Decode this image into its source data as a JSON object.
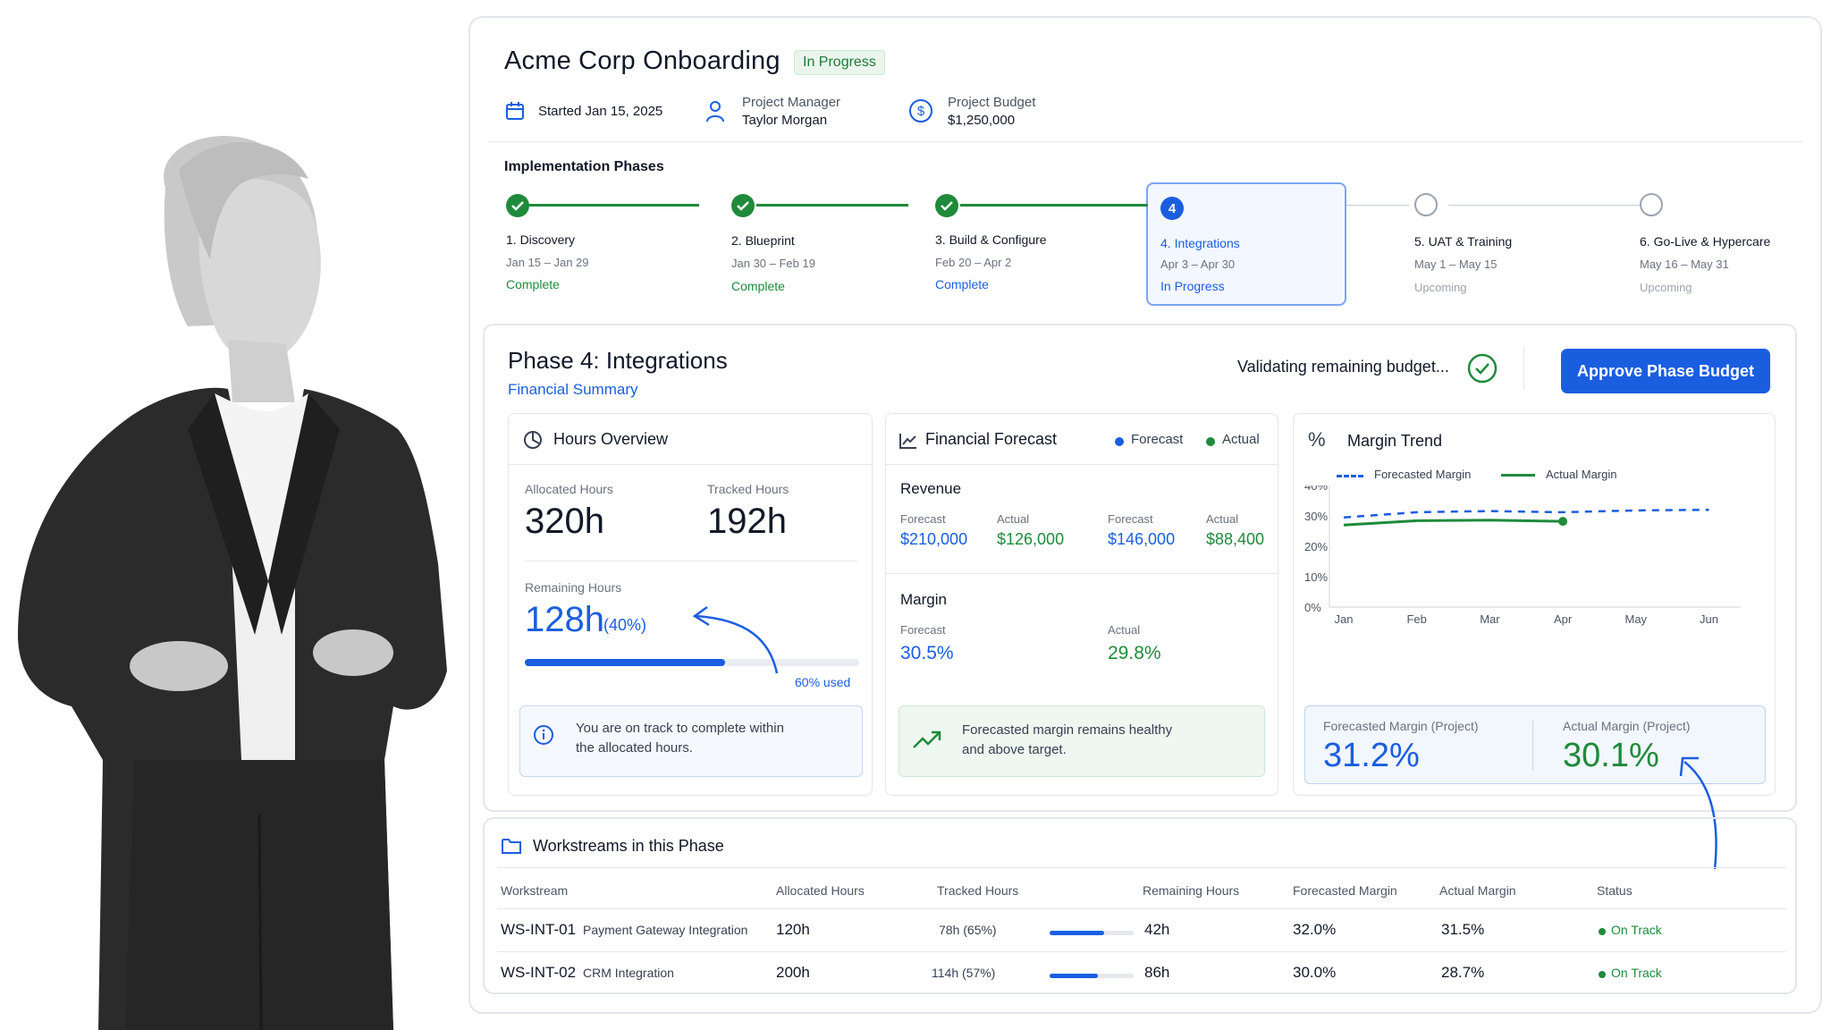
{
  "project": {
    "title": "Acme Corp Onboarding",
    "status_badge": "In Progress",
    "started": "Started Jan 15, 2025",
    "manager_label": "Project Manager",
    "manager_name": "Taylor Morgan",
    "budget_label": "Project Budget",
    "budget_value": "$1,250,000"
  },
  "phases": {
    "label": "Implementation Phases",
    "items": [
      {
        "name": "1. Discovery",
        "dates": "Jan 15 – Jan 29",
        "status": "Complete"
      },
      {
        "name": "2. Blueprint",
        "dates": "Jan 30 – Feb 19",
        "status": "Complete"
      },
      {
        "name": "3. Build & Configure",
        "dates": "Feb 20 – Apr 2",
        "status": "Complete"
      },
      {
        "name": "4. Integrations",
        "dates": "Apr 3 – Apr 30",
        "status": "In Progress",
        "number": "4"
      },
      {
        "name": "5. UAT & Training",
        "dates": "May 1 – May 15",
        "status": "Upcoming"
      },
      {
        "name": "6. Go-Live & Hypercare",
        "dates": "May 16 – May 31",
        "status": "Upcoming"
      }
    ]
  },
  "phase_panel": {
    "title": "Phase 4: Integrations",
    "subtitle": "Financial Summary",
    "validating_text": "Validating remaining budget...",
    "approve_button": "Approve Phase Budget"
  },
  "hours": {
    "title": "Hours Overview",
    "allocated_label": "Allocated Hours",
    "allocated_value": "320h",
    "tracked_label": "Tracked Hours",
    "tracked_value": "192h",
    "remaining_label": "Remaining Hours",
    "remaining_value": "128h",
    "remaining_pct": "(40%)",
    "used_text": "60% used",
    "used_fraction": 0.6,
    "info_text_1": "You are on track to complete within",
    "info_text_2": "the allocated hours."
  },
  "forecast": {
    "title": "Financial Forecast",
    "legend_forecast": "Forecast",
    "legend_actual": "Actual",
    "revenue_title": "Revenue",
    "rev": [
      {
        "label": "Forecast",
        "value": "$210,000"
      },
      {
        "label": "Actual",
        "value": "$126,000"
      },
      {
        "label": "Forecast",
        "value": "$146,000"
      },
      {
        "label": "Actual",
        "value": "$88,400"
      }
    ],
    "margin_title": "Margin",
    "margin_forecast_label": "Forecast",
    "margin_forecast_value": "30.5%",
    "margin_actual_label": "Actual",
    "margin_actual_value": "29.8%",
    "ok_text_1": "Forecasted margin remains healthy",
    "ok_text_2": "and above target."
  },
  "margin_trend": {
    "title": "Margin Trend",
    "legend_forecast": "Forecasted Margin",
    "legend_actual": "Actual Margin",
    "forecast_label": "Forecasted Margin (Project)",
    "forecast_value": "31.2%",
    "actual_label": "Actual Margin (Project)",
    "actual_value": "30.1%"
  },
  "chart_data": {
    "type": "line",
    "x": [
      "Jan",
      "Feb",
      "Mar",
      "Apr",
      "May",
      "Jun"
    ],
    "ylim": [
      0,
      40
    ],
    "yticks": [
      "0%",
      "10%",
      "20%",
      "30%",
      "40%"
    ],
    "series": [
      {
        "name": "Forecasted Margin",
        "values": [
          29.5,
          31.2,
          31.6,
          31.2,
          31.8,
          32.0
        ],
        "style": "dashed",
        "color": "#1a5ee0"
      },
      {
        "name": "Actual Margin",
        "values": [
          27.0,
          28.4,
          28.6,
          28.2,
          null,
          null
        ],
        "style": "solid",
        "color": "#1f8a3b"
      }
    ],
    "grid": false,
    "legend": "top-left"
  },
  "workstreams": {
    "title": "Workstreams in this Phase",
    "headers": [
      "Workstream",
      "Allocated Hours",
      "Tracked Hours",
      "Remaining Hours",
      "Forecasted Margin",
      "Actual Margin",
      "Status"
    ],
    "rows": [
      {
        "id": "WS-INT-01",
        "name": "Payment Gateway Integration",
        "allocated": "120h",
        "tracked": "78h (65%)",
        "tracked_fraction": 0.65,
        "remaining": "42h",
        "forecast_margin": "32.0%",
        "actual_margin": "31.5%",
        "status": "On Track"
      },
      {
        "id": "WS-INT-02",
        "name": "CRM Integration",
        "allocated": "200h",
        "tracked": "114h (57%)",
        "tracked_fraction": 0.57,
        "remaining": "86h",
        "forecast_margin": "30.0%",
        "actual_margin": "28.7%",
        "status": "On Track"
      }
    ]
  },
  "colors": {
    "accent": "#1a5ee0",
    "success": "#1f8a3b",
    "muted": "#9ca3af"
  }
}
